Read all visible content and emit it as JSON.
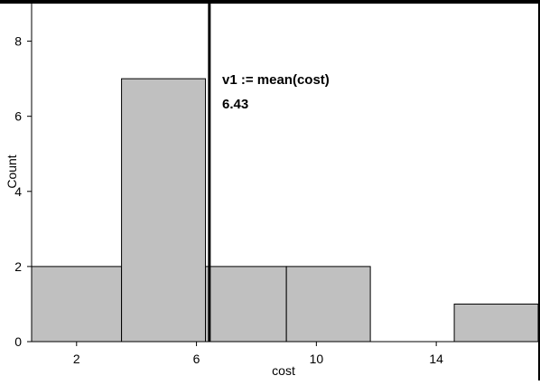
{
  "chart_data": {
    "type": "bar",
    "histogram": true,
    "bins": [
      {
        "start": 0.5,
        "end": 3.5,
        "count": 2
      },
      {
        "start": 3.5,
        "end": 6.3,
        "count": 7
      },
      {
        "start": 6.3,
        "end": 9.0,
        "count": 2
      },
      {
        "start": 9.0,
        "end": 11.8,
        "count": 2
      },
      {
        "start": 14.6,
        "end": 17.4,
        "count": 1
      }
    ],
    "xlabel": "cost",
    "ylabel": "Count",
    "xlim": [
      0.5,
      17.4
    ],
    "ylim": [
      0,
      9
    ],
    "x_ticks": [
      2,
      6,
      10,
      14
    ],
    "y_ticks": [
      0,
      2,
      4,
      6,
      8
    ],
    "grid": false,
    "mean_line": {
      "value": 6.43,
      "formula_label": "v1 := mean(cost)",
      "value_label": "6.43"
    },
    "colors": {
      "bar_fill": "#c0c0c0",
      "bar_stroke": "#000000",
      "mean_line": "#000000",
      "frame": "#000000"
    }
  }
}
